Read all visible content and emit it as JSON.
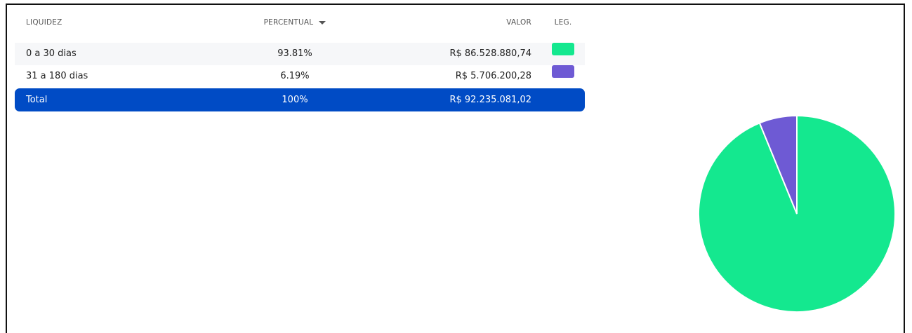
{
  "table": {
    "headers": [
      "LIQUIDEZ",
      "PERCENTUAL",
      "VALOR",
      "LEG."
    ],
    "total": [
      "Total",
      "100%",
      "R$ 92.235.081,02"
    ]
  },
  "chart_data": {
    "type": "pie",
    "categories": [
      "0 a 30 dias",
      "31 a 180 dias"
    ],
    "values": [
      93.81,
      6.19
    ],
    "value_labels": [
      "93.81%",
      "6.19%"
    ],
    "amounts": [
      "R$ 86.528.880,74",
      "R$ 5.706.200,28"
    ],
    "colors": [
      "#14e88f",
      "#6e5ad4"
    ]
  }
}
